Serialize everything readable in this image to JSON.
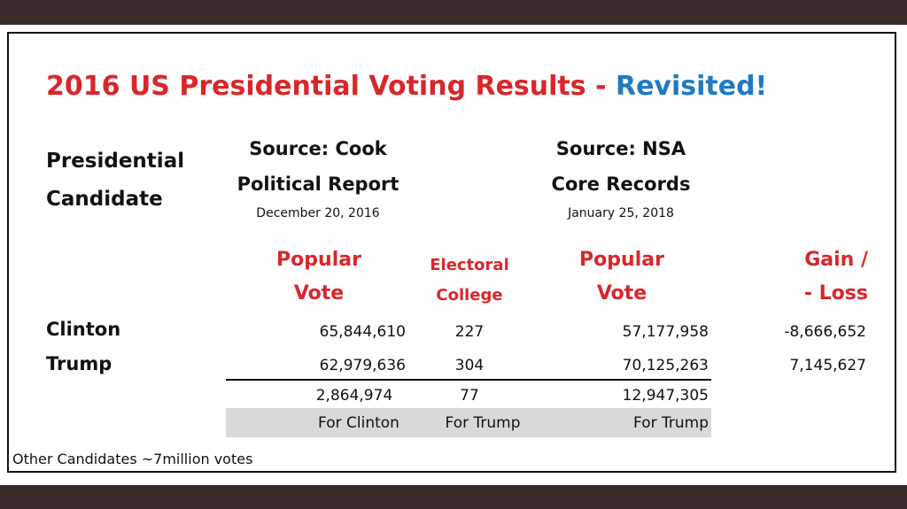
{
  "title": {
    "main": "2016 US Presidential Voting Results - ",
    "accent": "Revisited!"
  },
  "header": {
    "candidate_line1": "Presidential",
    "candidate_line2": "Candidate",
    "source1_line1": "Source: Cook",
    "source1_line2": "Political Report",
    "source1_date": "December 20, 2016",
    "source2_line1": "Source: NSA",
    "source2_line2": "Core Records",
    "source2_date": "January 25, 2018"
  },
  "columns": {
    "popular1_line1": "Popular",
    "popular1_line2": "Vote",
    "electoral_line1": "Electoral",
    "electoral_line2": "College",
    "popular2_line1": "Popular",
    "popular2_line2": "Vote",
    "gain_line1": "Gain /",
    "gain_line2": "- Loss"
  },
  "rows": [
    {
      "name": "Clinton",
      "popular_cook": "65,844,610",
      "electoral": "227",
      "popular_nsa": "57,177,958",
      "gain_loss": "-8,666,652"
    },
    {
      "name": "Trump",
      "popular_cook": "62,979,636",
      "electoral": "304",
      "popular_nsa": "70,125,263",
      "gain_loss": "7,145,627"
    }
  ],
  "totals": {
    "popular_cook": "2,864,974",
    "electoral": "77",
    "popular_nsa": "12,947,305"
  },
  "winners": {
    "popular_cook": "For Clinton",
    "electoral": "For Trump",
    "popular_nsa": "For Trump"
  },
  "footer": "Other Candidates ~7million votes",
  "colors": {
    "red": "#d9262b",
    "blue": "#1f7ac4",
    "frame": "#3a2b2a",
    "shade": "#d9d9d9"
  }
}
